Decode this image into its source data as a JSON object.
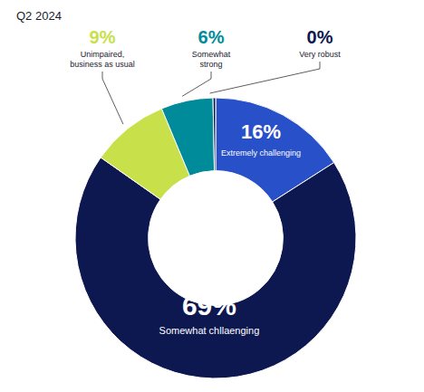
{
  "chart_data": {
    "type": "donut",
    "title": "Q2 2024",
    "categories": [
      "Extremely challenging",
      "Somewhat chll​aenging",
      "Unimpaired,\nbusiness as usual",
      "Somewhat\nstrong",
      "Very robust"
    ],
    "values": [
      16,
      69,
      9,
      6,
      0.3
    ],
    "value_labels": [
      "16%",
      "69%",
      "9%",
      "6%",
      "0%"
    ],
    "colors": [
      "#2850c8",
      "#0d1750",
      "#c8e04a",
      "#008b9a",
      "#0d1750"
    ]
  }
}
